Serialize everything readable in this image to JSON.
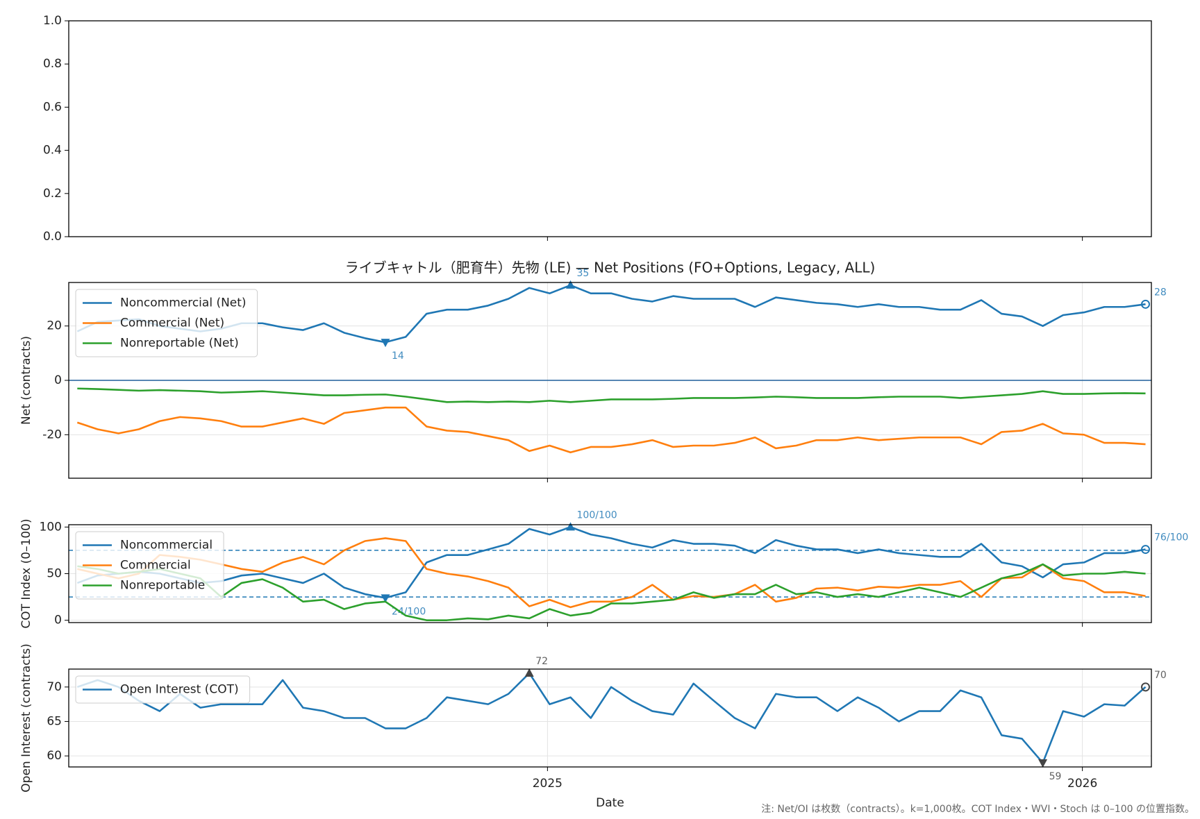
{
  "footnote": "注: Net/OI は枚数（contracts）。k=1,000枚。COT Index・WVI・Stoch は 0–100 の位置指数。",
  "chart_data": [
    {
      "type": "line",
      "xlim": [
        2024.105,
        2026.129
      ],
      "xticks": [
        2025,
        2026
      ],
      "ylim": [
        0,
        1
      ],
      "yticks": [
        {
          "value": 0,
          "label": "0.0"
        },
        {
          "value": 0.2,
          "label": "0.2"
        },
        {
          "value": 0.4,
          "label": "0.4"
        },
        {
          "value": 0.6,
          "label": "0.6"
        },
        {
          "value": 0.8,
          "label": "0.8"
        },
        {
          "value": 1,
          "label": "1.0"
        }
      ],
      "grid": false
    },
    {
      "type": "line",
      "title": "ライブキャトル（肥育牛）先物 (LE) — Net Positions (FO+Options, Legacy, ALL)",
      "ylabel": "Net (contracts)",
      "xlim": [
        2024.105,
        2026.129
      ],
      "xticks": [
        2025,
        2026
      ],
      "ylim": [
        -36,
        36
      ],
      "yticks": [
        -20,
        0,
        20
      ],
      "grid": true,
      "zero_line": true,
      "legend": "upper left",
      "x": [
        2024.121,
        2024.159,
        2024.198,
        2024.236,
        2024.275,
        2024.313,
        2024.351,
        2024.39,
        2024.428,
        2024.467,
        2024.505,
        2024.543,
        2024.582,
        2024.62,
        2024.659,
        2024.697,
        2024.735,
        2024.774,
        2024.812,
        2024.851,
        2024.889,
        2024.927,
        2024.966,
        2025.004,
        2025.043,
        2025.081,
        2025.119,
        2025.158,
        2025.196,
        2025.235,
        2025.273,
        2025.311,
        2025.35,
        2025.388,
        2025.427,
        2025.465,
        2025.503,
        2025.542,
        2025.58,
        2025.619,
        2025.657,
        2025.695,
        2025.734,
        2025.772,
        2025.811,
        2025.849,
        2025.887,
        2025.926,
        2025.964,
        2026.003,
        2026.041,
        2026.079,
        2026.118
      ],
      "series": [
        {
          "name": "Noncommercial (Net)",
          "color": "#1f77b4",
          "values": [
            18,
            21.5,
            22,
            22.5,
            20,
            19,
            18,
            19,
            21,
            21,
            19.5,
            18.5,
            21,
            17.5,
            15.5,
            14,
            16,
            24.5,
            26,
            26,
            27.5,
            30,
            34,
            32,
            35,
            32,
            32,
            30,
            29,
            31,
            30,
            30,
            30,
            27,
            30.5,
            29.5,
            28.5,
            28,
            27,
            28,
            27,
            27,
            26,
            26,
            29.5,
            24.5,
            23.5,
            20,
            24,
            25,
            27,
            27,
            28
          ],
          "value_labels": [
            null,
            null,
            null,
            null,
            null,
            null,
            null,
            null,
            null,
            null,
            null,
            null,
            null,
            null,
            null,
            "14",
            null,
            null,
            null,
            null,
            null,
            null,
            null,
            null,
            "35",
            null,
            null,
            null,
            null,
            null,
            null,
            null,
            null,
            null,
            null,
            null,
            null,
            null,
            null,
            null,
            null,
            null,
            null,
            null,
            null,
            null,
            null,
            null,
            null,
            null,
            null,
            null,
            "28"
          ]
        },
        {
          "name": "Commercial (Net)",
          "color": "#ff7f0e",
          "values": [
            -15.5,
            -18,
            -19.5,
            -18,
            -15,
            -13.5,
            -14,
            -15,
            -17,
            -17,
            -15.5,
            -14,
            -16,
            -12,
            -11,
            -10,
            -10,
            -17,
            -18.5,
            -19,
            -20.5,
            -22,
            -26,
            -24,
            -26.5,
            -24.5,
            -24.5,
            -23.5,
            -22,
            -24.5,
            -24,
            -24,
            -23,
            -21,
            -25,
            -24,
            -22,
            -22,
            -21,
            -22,
            -21.5,
            -21,
            -21,
            -21,
            -23.5,
            -19,
            -18.5,
            -16,
            -19.5,
            -20,
            -23,
            -23,
            -23.5
          ]
        },
        {
          "name": "Nonreportable (Net)",
          "color": "#2ca02c",
          "values": [
            -3,
            -3.2,
            -3.5,
            -3.8,
            -3.6,
            -3.8,
            -4,
            -4.5,
            -4.3,
            -4,
            -4.5,
            -5,
            -5.5,
            -5.5,
            -5.3,
            -5.2,
            -6,
            -7,
            -8,
            -7.8,
            -8,
            -7.8,
            -8,
            -7.5,
            -8,
            -7.5,
            -7,
            -7,
            -7,
            -6.8,
            -6.5,
            -6.5,
            -6.5,
            -6.3,
            -6,
            -6.2,
            -6.5,
            -6.5,
            -6.5,
            -6.2,
            -6,
            -6,
            -6,
            -6.5,
            -6,
            -5.5,
            -5,
            -4,
            -5,
            -5,
            -4.8,
            -4.7,
            -4.8
          ]
        }
      ]
    },
    {
      "type": "line",
      "ylabel": "COT Index (0–100)",
      "xlim": [
        2024.105,
        2026.129
      ],
      "xticks": [
        2025,
        2026
      ],
      "ylim": [
        -2.5,
        102.5
      ],
      "yticks": [
        0,
        50,
        100
      ],
      "grid": true,
      "hlines": [
        25,
        75
      ],
      "legend": "upper left",
      "x": [
        2024.121,
        2024.159,
        2024.198,
        2024.236,
        2024.275,
        2024.313,
        2024.351,
        2024.39,
        2024.428,
        2024.467,
        2024.505,
        2024.543,
        2024.582,
        2024.62,
        2024.659,
        2024.697,
        2024.735,
        2024.774,
        2024.812,
        2024.851,
        2024.889,
        2024.927,
        2024.966,
        2025.004,
        2025.043,
        2025.081,
        2025.119,
        2025.158,
        2025.196,
        2025.235,
        2025.273,
        2025.311,
        2025.35,
        2025.388,
        2025.427,
        2025.465,
        2025.503,
        2025.542,
        2025.58,
        2025.619,
        2025.657,
        2025.695,
        2025.734,
        2025.772,
        2025.811,
        2025.849,
        2025.887,
        2025.926,
        2025.964,
        2026.003,
        2026.041,
        2026.079,
        2026.118
      ],
      "series": [
        {
          "name": "Noncommercial",
          "color": "#1f77b4",
          "values": [
            40,
            48,
            50,
            52,
            50,
            45,
            40,
            42,
            48,
            50,
            45,
            40,
            50,
            35,
            28,
            24,
            30,
            62,
            70,
            70,
            76,
            82,
            98,
            92,
            100,
            92,
            88,
            82,
            78,
            86,
            82,
            82,
            80,
            72,
            86,
            80,
            76,
            76,
            72,
            76,
            72,
            70,
            68,
            68,
            82,
            62,
            58,
            46,
            60,
            62,
            72,
            72,
            76
          ],
          "value_labels": [
            null,
            null,
            null,
            null,
            null,
            null,
            null,
            null,
            null,
            null,
            null,
            null,
            null,
            null,
            null,
            "24/100",
            null,
            null,
            null,
            null,
            null,
            null,
            null,
            null,
            "100/100",
            null,
            null,
            null,
            null,
            null,
            null,
            null,
            null,
            null,
            null,
            null,
            null,
            null,
            null,
            null,
            null,
            null,
            null,
            null,
            null,
            null,
            null,
            null,
            null,
            null,
            null,
            null,
            "76/100"
          ]
        },
        {
          "name": "Commercial",
          "color": "#ff7f0e",
          "values": [
            55,
            50,
            45,
            50,
            70,
            68,
            65,
            60,
            55,
            52,
            62,
            68,
            60,
            75,
            85,
            88,
            85,
            55,
            50,
            47,
            42,
            35,
            15,
            22,
            14,
            20,
            20,
            25,
            38,
            22,
            26,
            25,
            28,
            38,
            20,
            24,
            34,
            35,
            32,
            36,
            35,
            38,
            38,
            42,
            25,
            45,
            46,
            60,
            45,
            42,
            30,
            30,
            26
          ]
        },
        {
          "name": "Nonreportable",
          "color": "#2ca02c",
          "values": [
            58,
            55,
            50,
            52,
            55,
            50,
            45,
            25,
            40,
            44,
            35,
            20,
            22,
            12,
            18,
            20,
            5,
            0,
            0,
            2,
            1,
            5,
            2,
            12,
            5,
            8,
            18,
            18,
            20,
            22,
            30,
            24,
            28,
            28,
            38,
            28,
            30,
            25,
            28,
            25,
            30,
            35,
            30,
            25,
            35,
            45,
            50,
            60,
            48,
            50,
            50,
            52,
            50
          ]
        }
      ]
    },
    {
      "type": "line",
      "ylabel": "Open Interest (contracts)",
      "xlabel": "Date",
      "xlim": [
        2024.105,
        2026.129
      ],
      "xticks": [
        2025,
        2026
      ],
      "ylim": [
        58.4,
        72.6
      ],
      "yticks": [
        60,
        65,
        70
      ],
      "grid": true,
      "legend": "upper left",
      "marker_color": "#444444",
      "x": [
        2024.121,
        2024.159,
        2024.198,
        2024.236,
        2024.275,
        2024.313,
        2024.351,
        2024.39,
        2024.428,
        2024.467,
        2024.505,
        2024.543,
        2024.582,
        2024.62,
        2024.659,
        2024.697,
        2024.735,
        2024.774,
        2024.812,
        2024.851,
        2024.889,
        2024.927,
        2024.966,
        2025.004,
        2025.043,
        2025.081,
        2025.119,
        2025.158,
        2025.196,
        2025.235,
        2025.273,
        2025.311,
        2025.35,
        2025.388,
        2025.427,
        2025.465,
        2025.503,
        2025.542,
        2025.58,
        2025.619,
        2025.657,
        2025.695,
        2025.734,
        2025.772,
        2025.811,
        2025.849,
        2025.887,
        2025.926,
        2025.964,
        2026.003,
        2026.041,
        2026.079,
        2026.118
      ],
      "series": [
        {
          "name": "Open Interest (COT)",
          "color": "#1f77b4",
          "values": [
            70,
            71,
            70,
            68,
            66.5,
            69,
            67,
            67.5,
            67.5,
            67.5,
            71,
            67,
            66.5,
            65.5,
            65.5,
            64,
            64,
            65.5,
            68.5,
            68,
            67.5,
            69,
            72,
            67.5,
            68.5,
            65.5,
            70,
            68,
            66.5,
            66,
            70.5,
            68,
            65.5,
            64,
            69,
            68.5,
            68.5,
            66.5,
            68.5,
            67,
            65,
            66.5,
            66.5,
            69.5,
            68.5,
            63,
            62.5,
            59,
            66.5,
            65.7,
            67.5,
            67.3,
            70
          ],
          "value_labels": [
            null,
            null,
            null,
            null,
            null,
            null,
            null,
            null,
            null,
            null,
            null,
            null,
            null,
            null,
            null,
            null,
            null,
            null,
            null,
            null,
            null,
            null,
            "72",
            null,
            null,
            null,
            null,
            null,
            null,
            null,
            null,
            null,
            null,
            null,
            null,
            null,
            null,
            null,
            null,
            null,
            null,
            null,
            null,
            null,
            null,
            null,
            null,
            "59",
            null,
            null,
            null,
            null,
            "70"
          ]
        }
      ]
    }
  ]
}
